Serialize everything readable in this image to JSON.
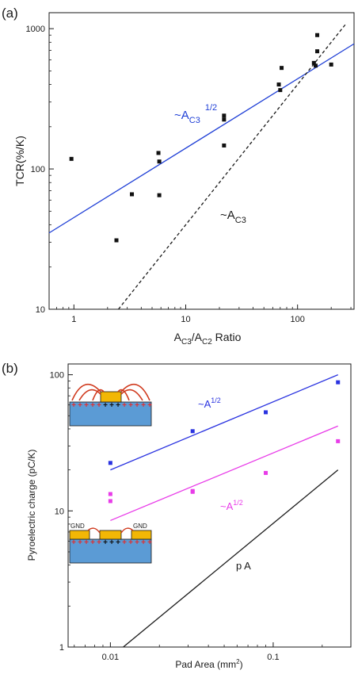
{
  "chart_data": [
    {
      "panel_label": "(a)",
      "type": "scatter",
      "x_scale": "log",
      "y_scale": "log",
      "xlim": [
        0.6,
        320
      ],
      "ylim": [
        10,
        1300
      ],
      "x_ticks": [
        1,
        10,
        100
      ],
      "x_tick_labels": [
        "1",
        "10",
        "100"
      ],
      "y_ticks": [
        10,
        100,
        1000
      ],
      "y_tick_labels": [
        "10",
        "100",
        "1000"
      ],
      "xlabel_parts": [
        "A",
        "C3",
        "/A",
        "C2",
        " Ratio"
      ],
      "ylabel": "TCR(%/K)",
      "grid": false,
      "points": [
        [
          0.95,
          118
        ],
        [
          2.4,
          31
        ],
        [
          3.3,
          66
        ],
        [
          5.7,
          130
        ],
        [
          5.8,
          113
        ],
        [
          5.8,
          65
        ],
        [
          22,
          240
        ],
        [
          22,
          225
        ],
        [
          22,
          147
        ],
        [
          68,
          400
        ],
        [
          70,
          365
        ],
        [
          72,
          525
        ],
        [
          140,
          570
        ],
        [
          145,
          545
        ],
        [
          150,
          900
        ],
        [
          150,
          690
        ],
        [
          200,
          555
        ]
      ],
      "fits": [
        {
          "x": [
            0.6,
            320
          ],
          "y": [
            35,
            780
          ],
          "color": "#1f3fd6",
          "style": "solid",
          "label_parts": [
            "~A",
            "C3",
            "1/2"
          ]
        },
        {
          "x": [
            2.5,
            270
          ],
          "y": [
            10,
            1080
          ],
          "color": "#1a1a1a",
          "style": "dashed",
          "label_parts": [
            "~A",
            "C3"
          ]
        }
      ]
    },
    {
      "panel_label": "(b)",
      "type": "scatter",
      "x_scale": "log",
      "y_scale": "log",
      "xlim": [
        0.0055,
        0.3
      ],
      "ylim": [
        1,
        120
      ],
      "x_ticks": [
        0.01,
        0.1
      ],
      "x_tick_labels": [
        "0.01",
        "0.1"
      ],
      "y_ticks": [
        1,
        10,
        100
      ],
      "y_tick_labels": [
        "1",
        "10",
        "100"
      ],
      "xlabel_parts": [
        "Pad Area (mm",
        "2",
        ")"
      ],
      "ylabel": "Pyroelectric charge (pC/K)",
      "grid": false,
      "series": [
        {
          "color": "#2a33e0",
          "points": [
            [
              0.01,
              22.5
            ],
            [
              0.032,
              38.5
            ],
            [
              0.09,
              53
            ],
            [
              0.25,
              88
            ]
          ]
        },
        {
          "color": "#e83ce8",
          "points": [
            [
              0.01,
              13.3
            ],
            [
              0.01,
              11.8
            ],
            [
              0.032,
              14
            ],
            [
              0.032,
              13.8
            ],
            [
              0.09,
              19
            ],
            [
              0.25,
              32.5
            ]
          ]
        }
      ],
      "fits": [
        {
          "x": [
            0.01,
            0.25
          ],
          "y": [
            20,
            100
          ],
          "color": "#2a33e0",
          "style": "solid",
          "label_parts": [
            "~A",
            "1/2"
          ]
        },
        {
          "x": [
            0.01,
            0.25
          ],
          "y": [
            8.5,
            42
          ],
          "color": "#e83ce8",
          "style": "solid",
          "label_parts": [
            "~A",
            "1/2"
          ]
        },
        {
          "x": [
            0.012,
            0.25
          ],
          "y": [
            1.0,
            20
          ],
          "color": "#1a1a1a",
          "style": "solid",
          "label_parts": [
            "p A"
          ]
        }
      ],
      "insets": {
        "gnd_label": "GND",
        "charge_symbols": [
          "+",
          "+"
        ],
        "colors": {
          "substrate": "#5b9bd5",
          "pad": "#f2b705",
          "field": "#d03a1e",
          "plus_edge": "#e03030",
          "plus_center": "#111111"
        }
      }
    }
  ]
}
